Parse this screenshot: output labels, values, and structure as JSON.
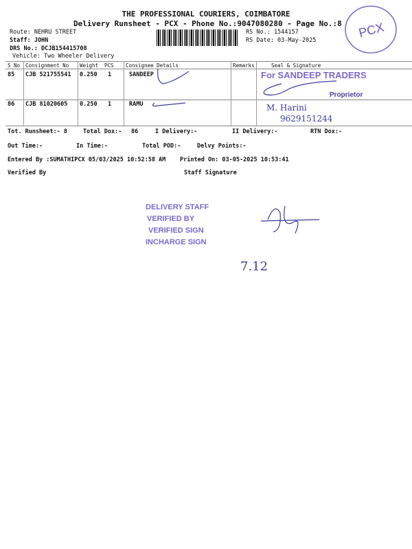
{
  "header": {
    "company": "THE PROFESSIONAL COURIERS, COIMBATORE",
    "subtitle": "Delivery Runsheet - PCX - Phone No.:9047080280 - Page No.:8",
    "route": "Route: NEHRU STREET",
    "staff": "Staff: JOHN",
    "drs": "DRS No.: DCJB154415708",
    "vehicle": "Vehicle: Two Wheeler Delivery",
    "rs_no": "RS No.: 1544157",
    "rs_date": "RS Date: 03-May-2025",
    "stamp_pcx": "PCX"
  },
  "table": {
    "columns": [
      "S No",
      "Consignment No",
      "Weight",
      "PCS",
      "Consignee Details",
      "Remarks",
      "Seal & Signature"
    ],
    "rows": [
      {
        "sno": "85",
        "consignment": "CJB 521755541",
        "weight": "0.250",
        "pcs": "1",
        "consignee": "SANDEEP",
        "remarks": ""
      },
      {
        "sno": "86",
        "consignment": "CJB 81020605",
        "weight": "0.250",
        "pcs": "1",
        "consignee": "RAMU",
        "remarks": ""
      }
    ],
    "seal_stamp": "For SANDEEP TRADERS",
    "seal_role": "Proprietor",
    "handwritten_name": "M. Harini",
    "handwritten_phone": "9629151244"
  },
  "summary": {
    "tot_runsheet": "Tot. Runsheet:- 8",
    "total_dox": "Total Dox:-",
    "total_dox_val": "86",
    "i_delivery": "I Delivery:-",
    "ii_delivery": "II Delivery:-",
    "rtn_dox": "RTN Dox:-",
    "out_time": "Out Time:-",
    "in_time": "In Time:-",
    "total_pod": "Total POD:-",
    "delvy_points": "Delvy Points:-",
    "entered_by": "Entered By :SUMATHIPCX 05/03/2025 10:52:58 AM",
    "printed_on": "Printed On: 03-05-2025 10:53:41",
    "verified_by": "Verified By",
    "staff_signature": "Staff Signature"
  },
  "verification_stamp": [
    "DELIVERY STAFF",
    "VERIFIED BY",
    "VERIFIED SIGN",
    "INCHARGE SIGN"
  ],
  "handwritten_date": "7.12"
}
